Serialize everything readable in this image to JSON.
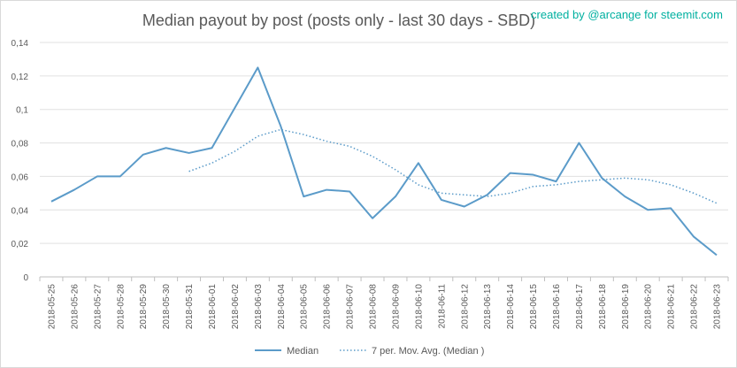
{
  "chart_data": {
    "type": "line",
    "title": "Median payout by post (posts only - last 30 days - SBD)",
    "credit": "created by @arcange for steemit.com",
    "categories": [
      "2018-05-25",
      "2018-05-26",
      "2018-05-27",
      "2018-05-28",
      "2018-05-29",
      "2018-05-30",
      "2018-05-31",
      "2018-06-01",
      "2018-06-02",
      "2018-06-03",
      "2018-06-04",
      "2018-06-05",
      "2018-06-06",
      "2018-06-07",
      "2018-06-08",
      "2018-06-09",
      "2018-06-10",
      "2018-06-11",
      "2018-06-12",
      "2018-06-13",
      "2018-06-14",
      "2018-06-15",
      "2018-06-16",
      "2018-06-17",
      "2018-06-18",
      "2018-06-19",
      "2018-06-20",
      "2018-06-21",
      "2018-06-22",
      "2018-06-23"
    ],
    "series": [
      {
        "name": "Median",
        "style": "solid",
        "color": "#5b9bc9",
        "values": [
          0.045,
          0.052,
          0.06,
          0.06,
          0.073,
          0.077,
          0.074,
          0.077,
          0.101,
          0.125,
          0.09,
          0.048,
          0.052,
          0.051,
          0.035,
          0.048,
          0.068,
          0.046,
          0.042,
          0.049,
          0.062,
          0.061,
          0.057,
          0.08,
          0.059,
          0.048,
          0.04,
          0.041,
          0.024,
          0.013
        ]
      },
      {
        "name": "7 per. Mov. Avg. (Median )",
        "style": "dotted",
        "color": "#5b9bc9",
        "values": [
          null,
          null,
          null,
          null,
          null,
          null,
          0.063,
          0.068,
          0.075,
          0.084,
          0.088,
          0.085,
          0.081,
          0.078,
          0.072,
          0.064,
          0.055,
          0.05,
          0.049,
          0.048,
          0.05,
          0.054,
          0.055,
          0.057,
          0.058,
          0.059,
          0.058,
          0.055,
          0.05,
          0.044
        ]
      }
    ],
    "y_ticks": [
      "0",
      "0,02",
      "0,04",
      "0,06",
      "0,08",
      "0,1",
      "0,12",
      "0,14"
    ],
    "ylim": [
      0,
      0.14
    ],
    "y_step": 0.02,
    "grid": "horizontal",
    "legend": "bottom-center",
    "credit_color": "#00b0a0"
  }
}
